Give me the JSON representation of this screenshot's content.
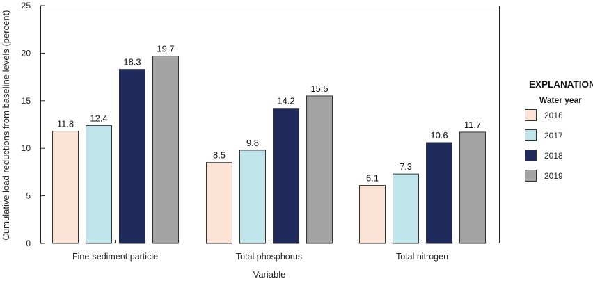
{
  "chart_data": {
    "type": "bar",
    "categories": [
      "Fine-sediment particle",
      "Total phosphorus",
      "Total nitrogen"
    ],
    "series": [
      {
        "name": "2016",
        "values": [
          11.8,
          8.5,
          6.1
        ],
        "color": "#fbe3d6"
      },
      {
        "name": "2017",
        "values": [
          12.4,
          9.8,
          7.3
        ],
        "color": "#bfe5ea"
      },
      {
        "name": "2018",
        "values": [
          18.3,
          14.2,
          10.6
        ],
        "color": "#1f2a5c"
      },
      {
        "name": "2019",
        "values": [
          19.7,
          15.5,
          11.7
        ],
        "color": "#a3a3a3"
      }
    ],
    "data_labels": [
      [
        "11.8",
        "12.4",
        "18.3",
        "19.7"
      ],
      [
        "8.5",
        "9.8",
        "14.2",
        "15.5"
      ],
      [
        "6.1",
        "7.3",
        "10.6",
        "11.7"
      ]
    ],
    "xlabel": "Variable",
    "ylabel": "Cumulative load reductions from baseline levels (percent)",
    "ylim": [
      0,
      25
    ],
    "yticks": [
      "0",
      "5",
      "10",
      "15",
      "20",
      "25"
    ],
    "grid": false,
    "legend": {
      "title": "EXPLANATION",
      "subtitle": "Water year",
      "placement": "right"
    }
  }
}
